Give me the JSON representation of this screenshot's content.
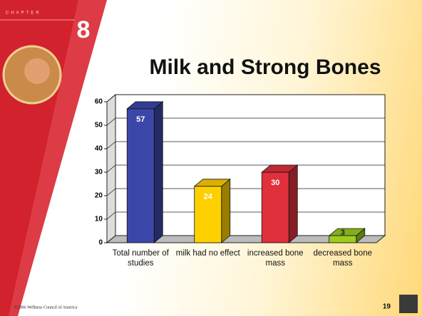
{
  "chapter_label": "CHAPTER",
  "chapter_number": "8",
  "footer": {
    "copyright": "©2006 Wellness Council of America",
    "page_number": "19"
  },
  "chart_data": {
    "type": "bar3d",
    "title": "Milk and Strong Bones",
    "categories": [
      "Total number of studies",
      "milk had no effect",
      "increased bone mass",
      "decreased bone mass"
    ],
    "values": [
      57,
      24,
      30,
      3
    ],
    "colors": [
      "#3b47a8",
      "#ffd000",
      "#e0303c",
      "#9acd1e"
    ],
    "ylim": [
      0,
      60
    ],
    "yticks": [
      0,
      10,
      20,
      30,
      40,
      50,
      60
    ],
    "grid": true
  }
}
